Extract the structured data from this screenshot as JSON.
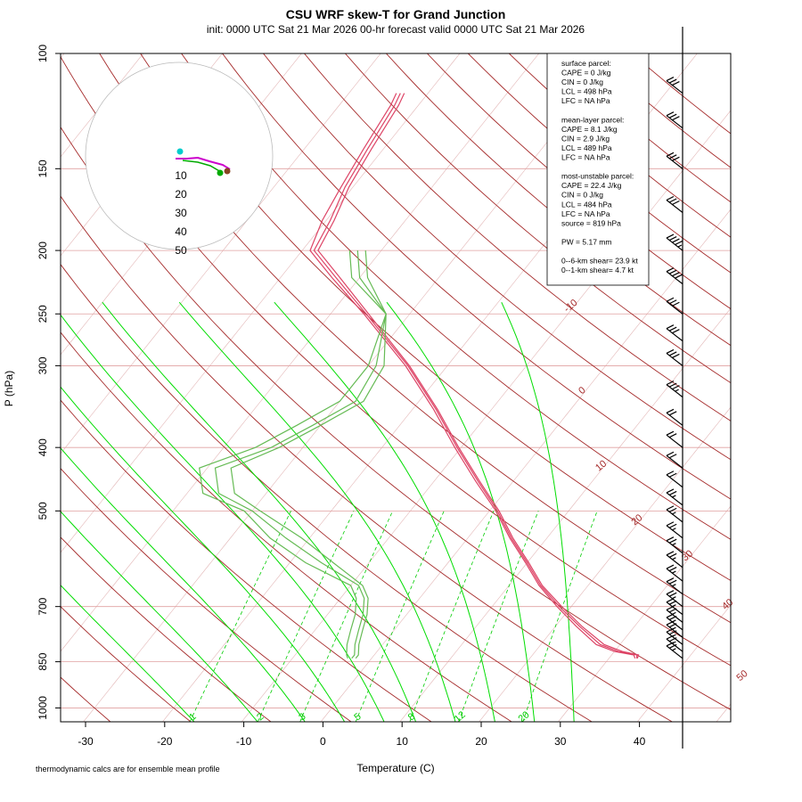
{
  "header": {
    "title": "CSU WRF skew-T for Grand Junction",
    "subtitle": "init: 0000 UTC Sat 21 Mar 2026     00-hr forecast valid 0000 UTC Sat 21 Mar 2026"
  },
  "footnote": "thermodynamic calcs are for ensemble mean profile",
  "info_box": {
    "lines": [
      "surface parcel:",
      "CAPE = 0 J/kg",
      "CIN = 0 J/kg",
      "LCL = 498 hPa",
      "LFC = NA hPa",
      "",
      "mean-layer parcel:",
      "CAPE = 8.1 J/kg",
      "CIN = 2.9 J/kg",
      "LCL = 489 hPa",
      "LFC = NA hPa",
      "",
      "most-unstable parcel:",
      "CAPE = 22.4 J/kg",
      "CIN = 0 J/kg",
      "LCL = 484 hPa",
      "LFC = NA hPa",
      "source = 819 hPa",
      "",
      "PW =  5.17 mm",
      "",
      "0--6-km shear= 23.9 kt",
      "0--1-km shear= 4.7 kt"
    ]
  },
  "colors": {
    "isotherm": "#a52a2a",
    "dry_adiabat": "#a52a2a",
    "moist_adiabat": "#00dd00",
    "mixing_ratio": "#00cc00",
    "temperature": "#dd4466",
    "dewpoint": "#66bb55",
    "skew_grid": "#e0b0b0",
    "isobar": "#e0a0a0",
    "hodo_ring": "#bbbbbb",
    "hodo_trace": "#cc00cc",
    "hodo_cyan": "#00cccc",
    "hodo_green": "#00aa00",
    "hodo_dark": "#884422"
  },
  "chart_data": {
    "type": "skew-t",
    "title": "CSU WRF skew-T for Grand Junction",
    "xlabel": "Temperature (C)",
    "ylabel": "P (hPa)",
    "x_ticks": [
      -30,
      -20,
      -10,
      0,
      10,
      20,
      30,
      40
    ],
    "y_ticks": [
      100,
      150,
      200,
      250,
      300,
      400,
      500,
      700,
      850,
      1000
    ],
    "xlim": [
      -33,
      48
    ],
    "ylim": [
      1050,
      100
    ],
    "isotherm_labels": [
      -10,
      0,
      10,
      20,
      30,
      40,
      50
    ],
    "mixing_ratio_labels": [
      1,
      2,
      3,
      5,
      8,
      12,
      20
    ],
    "hodograph": {
      "ring_labels": [
        10,
        20,
        30,
        40,
        50
      ]
    },
    "series": [
      {
        "name": "temperature",
        "members": [
          {
            "p": [
              840,
              830,
              820,
              800,
              750,
              700,
              650,
              600,
              550,
              500,
              450,
              400,
              350,
              300,
              250,
              220,
              200,
              180,
              160,
              140,
              120,
              115
            ],
            "t": [
              33.5,
              33.2,
              30.5,
              27.5,
              23,
              18.5,
              14,
              10,
              5.5,
              1,
              -4.5,
              -10.5,
              -17,
              -25,
              -35.5,
              -43,
              -48.5,
              -49.5,
              -51,
              -52,
              -53,
              -53.5
            ]
          },
          {
            "p": [
              840,
              830,
              820,
              800,
              750,
              700,
              650,
              600,
              550,
              500,
              450,
              400,
              350,
              300,
              250,
              220,
              200,
              180,
              160,
              140,
              120,
              115
            ],
            "t": [
              33.3,
              32.8,
              30.0,
              27.0,
              22.6,
              18.2,
              13.8,
              9.8,
              5.3,
              0.8,
              -4.8,
              -10.8,
              -17.3,
              -25.3,
              -35.8,
              -43.5,
              -49,
              -50.5,
              -51.5,
              -52.5,
              -53.5,
              -54
            ]
          },
          {
            "p": [
              840,
              830,
              820,
              800,
              750,
              700,
              650,
              600,
              550,
              500,
              450,
              400,
              350,
              300,
              250,
              220,
              200,
              180,
              160,
              140,
              120,
              115
            ],
            "t": [
              33.6,
              33.4,
              31.0,
              28.0,
              23.3,
              18.8,
              14.2,
              10.2,
              5.7,
              1.2,
              -4.3,
              -10.3,
              -16.8,
              -24.8,
              -35.2,
              -42.5,
              -48,
              -49,
              -50.5,
              -51.5,
              -52.5,
              -53
            ]
          }
        ]
      },
      {
        "name": "dewpoint",
        "members": [
          {
            "p": [
              840,
              830,
              800,
              760,
              720,
              680,
              650,
              600,
              550,
              500,
              470,
              430,
              400,
              370,
              340,
              300,
              250,
              220,
              200
            ],
            "t": [
              -2.5,
              -2.5,
              -3.5,
              -4.5,
              -5.5,
              -7,
              -9,
              -16,
              -23,
              -30,
              -36,
              -39,
              -34,
              -31,
              -28,
              -29,
              -33,
              -40,
              -43
            ]
          },
          {
            "p": [
              840,
              830,
              800,
              760,
              720,
              680,
              650,
              600,
              550,
              500,
              470,
              430,
              400,
              370,
              340,
              300,
              250,
              220,
              200
            ],
            "t": [
              -3,
              -3.5,
              -4.5,
              -5.5,
              -6.5,
              -8,
              -10,
              -18,
              -25,
              -31,
              -38,
              -41,
              -36,
              -33,
              -30,
              -30,
              -33,
              -41,
              -44
            ]
          },
          {
            "p": [
              840,
              830,
              800,
              760,
              720,
              680,
              650,
              600,
              550,
              500,
              470,
              430,
              400,
              370,
              340,
              300,
              250,
              220,
              200
            ],
            "t": [
              -2,
              -2,
              -3,
              -4,
              -5,
              -6.5,
              -8.5,
              -14.5,
              -21,
              -29,
              -34,
              -37,
              -33,
              -30,
              -27,
              -28,
              -33,
              -39,
              -42
            ]
          }
        ]
      }
    ],
    "moist_adiabat_start_temps": [
      -16,
      -8,
      -2,
      3,
      8,
      12,
      17,
      22,
      27,
      32
    ],
    "wind_barbs": [
      {
        "p": 115,
        "spd": 30
      },
      {
        "p": 130,
        "spd": 30
      },
      {
        "p": 150,
        "spd": 30
      },
      {
        "p": 175,
        "spd": 30
      },
      {
        "p": 200,
        "spd": 35
      },
      {
        "p": 225,
        "spd": 40
      },
      {
        "p": 250,
        "spd": 30
      },
      {
        "p": 275,
        "spd": 30
      },
      {
        "p": 300,
        "spd": 30
      },
      {
        "p": 335,
        "spd": 25
      },
      {
        "p": 370,
        "spd": 20
      },
      {
        "p": 400,
        "spd": 20
      },
      {
        "p": 430,
        "spd": 20
      },
      {
        "p": 460,
        "spd": 20
      },
      {
        "p": 490,
        "spd": 15
      },
      {
        "p": 520,
        "spd": 15
      },
      {
        "p": 550,
        "spd": 15
      },
      {
        "p": 580,
        "spd": 15
      },
      {
        "p": 610,
        "spd": 15
      },
      {
        "p": 640,
        "spd": 15
      },
      {
        "p": 670,
        "spd": 15
      },
      {
        "p": 700,
        "spd": 15
      },
      {
        "p": 720,
        "spd": 15
      },
      {
        "p": 740,
        "spd": 15
      },
      {
        "p": 760,
        "spd": 15
      },
      {
        "p": 780,
        "spd": 15
      },
      {
        "p": 800,
        "spd": 15
      },
      {
        "p": 820,
        "spd": 15
      },
      {
        "p": 840,
        "spd": 15
      }
    ]
  }
}
